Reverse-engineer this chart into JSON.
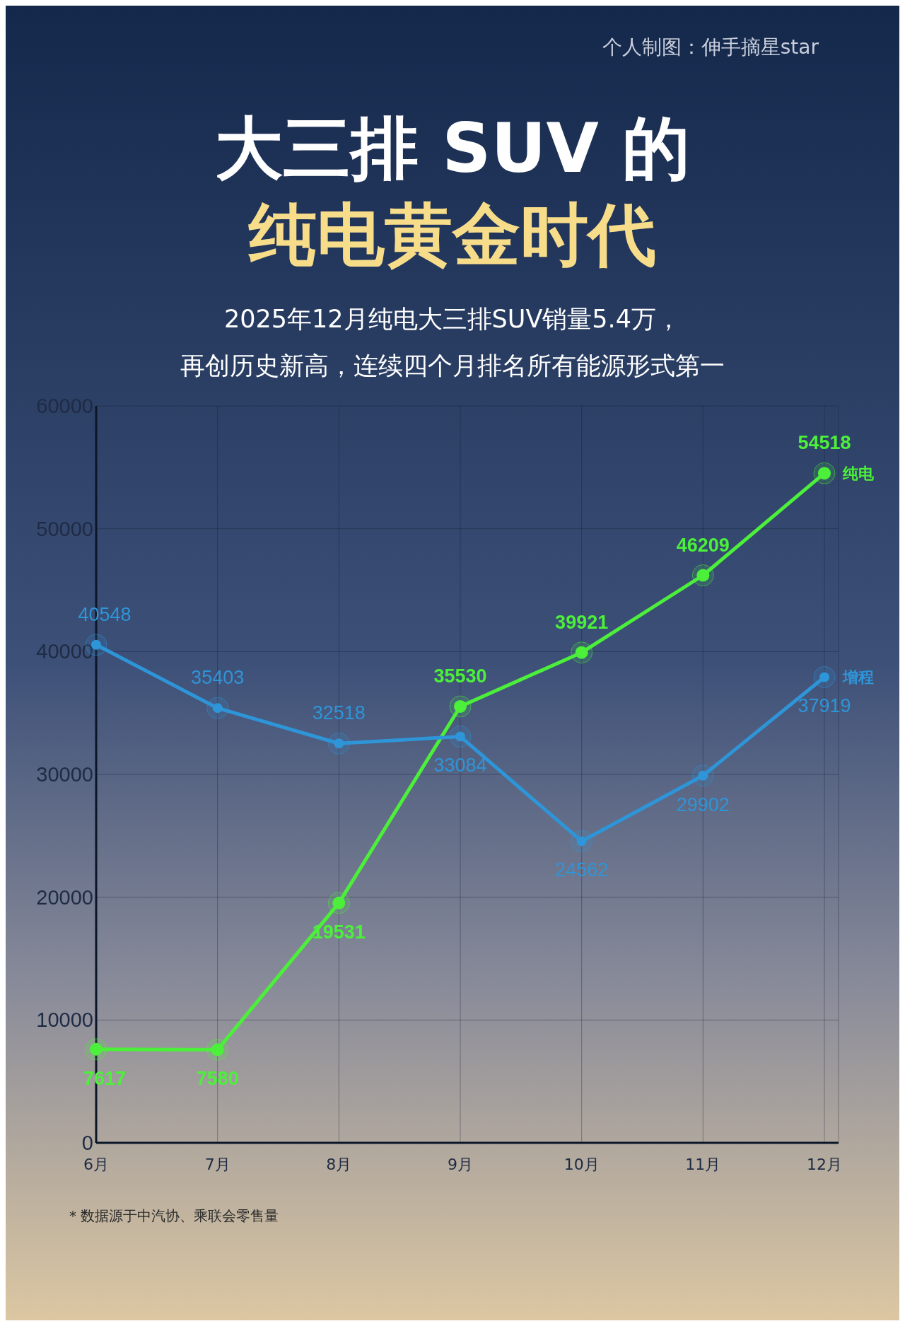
{
  "chart_data": {
    "type": "line",
    "title": "大三排 SUV 的纯电黄金时代",
    "subtitle": "2025年12月纯电大三排SUV销量5.4万，再创历史新高，连续四个月排名所有能源形式第一",
    "categories": [
      "6月",
      "7月",
      "8月",
      "9月",
      "10月",
      "11月",
      "12月"
    ],
    "series": [
      {
        "name": "纯电",
        "color": "#4cf03a",
        "values": [
          7617,
          7580,
          19531,
          35530,
          39921,
          46209,
          54518
        ]
      },
      {
        "name": "增程",
        "color": "#2e95d8",
        "values": [
          40548,
          35403,
          32518,
          33084,
          24562,
          29902,
          37919
        ]
      }
    ],
    "ylim": [
      0,
      60000
    ],
    "yticks": [
      0,
      10000,
      20000,
      30000,
      40000,
      50000,
      60000
    ],
    "grid": true,
    "legend": false,
    "marker": "circle",
    "line_style": "solid",
    "data_labels": true,
    "annotations": [
      "个人制图：伸手摘星star",
      "* 数据源于中汽协、乘联会零售量"
    ]
  }
}
